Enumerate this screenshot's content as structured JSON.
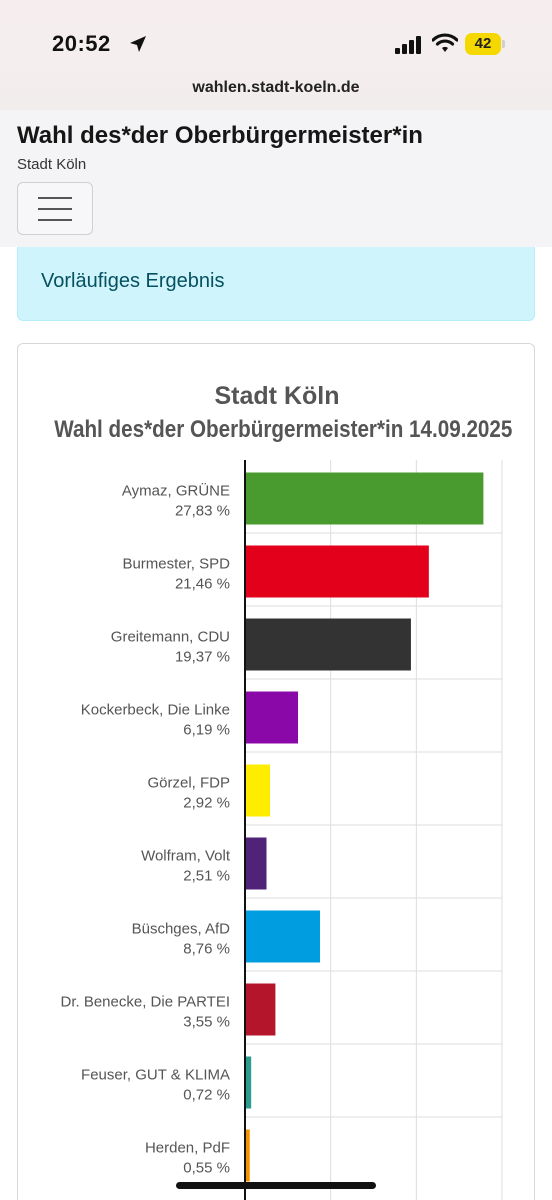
{
  "status_bar": {
    "time": "20:52",
    "battery": "42"
  },
  "browser": {
    "url": "wahlen.stadt-koeln.de"
  },
  "header": {
    "title": "Wahl des*der Oberbürgermeister*in",
    "subtitle": "Stadt Köln"
  },
  "alert": {
    "text": "Vorläufiges Ergebnis"
  },
  "colors": {
    "alert_bg": "#cff4fc",
    "alert_text": "#055160",
    "battery": "#f5d800"
  },
  "chart_data": {
    "type": "bar",
    "orientation": "horizontal",
    "title": "Stadt Köln",
    "subtitle": "Wahl des*der Oberbürgermeister*in 14.09.2025",
    "xlim": [
      0,
      30
    ],
    "grid": true,
    "bars": [
      {
        "candidate": "Aymaz, GRÜNE",
        "label": "27,83 %",
        "value": 27.83,
        "color": "#4a9b2f"
      },
      {
        "candidate": "Burmester, SPD",
        "label": "21,46 %",
        "value": 21.46,
        "color": "#e2001a"
      },
      {
        "candidate": "Greitemann, CDU",
        "label": "19,37 %",
        "value": 19.37,
        "color": "#333333"
      },
      {
        "candidate": "Kockerbeck, Die Linke",
        "label": "6,19 %",
        "value": 6.19,
        "color": "#8b08a8"
      },
      {
        "candidate": "Görzel, FDP",
        "label": "2,92 %",
        "value": 2.92,
        "color": "#ffed00"
      },
      {
        "candidate": "Wolfram, Volt",
        "label": "2,51 %",
        "value": 2.51,
        "color": "#502379"
      },
      {
        "candidate": "Büschges, AfD",
        "label": "8,76 %",
        "value": 8.76,
        "color": "#009ee0"
      },
      {
        "candidate": "Dr. Benecke, Die PARTEI",
        "label": "3,55 %",
        "value": 3.55,
        "color": "#b5152b"
      },
      {
        "candidate": "Feuser, GUT & KLIMA",
        "label": "0,72 %",
        "value": 0.72,
        "color": "#2a9d8f"
      },
      {
        "candidate": "Herden, PdF",
        "label": "0,55 %",
        "value": 0.55,
        "color": "#f39200"
      }
    ]
  }
}
